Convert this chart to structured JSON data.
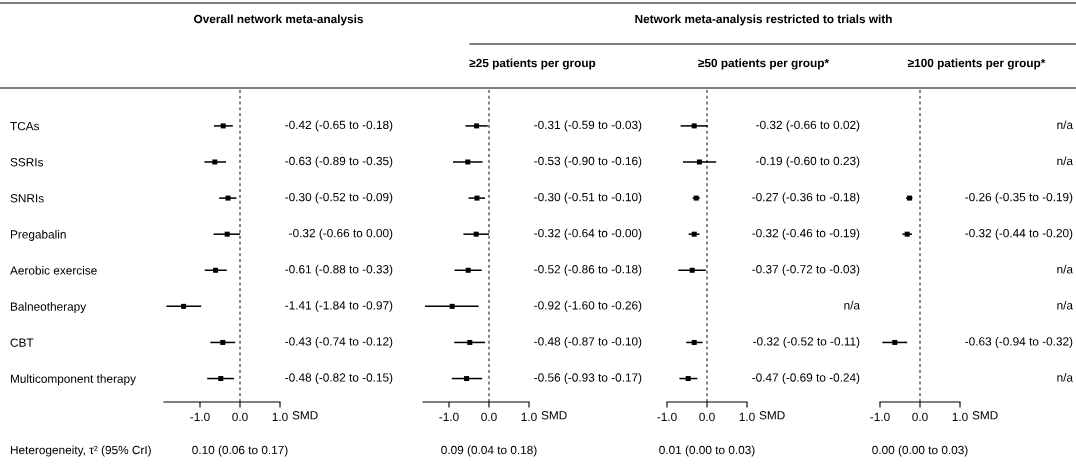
{
  "chart_data": [
    {
      "type": "scatter",
      "orientation": "horizontal",
      "title": "Overall network meta-analysis",
      "xlabel": "SMD",
      "color": "#000000",
      "marker": "square",
      "legend": false,
      "grid": false,
      "categories": [
        "TCAs",
        "SSRIs",
        "SNRIs",
        "Pregabalin",
        "Aerobic exercise",
        "Balneotherapy",
        "CBT",
        "Multicomponent therapy"
      ],
      "values": [
        -0.42,
        -0.63,
        -0.3,
        -0.32,
        -0.61,
        -1.41,
        -0.43,
        -0.48
      ],
      "errors": [
        [
          -0.65,
          -0.18
        ],
        [
          -0.89,
          -0.35
        ],
        [
          -0.52,
          -0.09
        ],
        [
          -0.66,
          0.0
        ],
        [
          -0.88,
          -0.33
        ],
        [
          -1.84,
          -0.97
        ],
        [
          -0.74,
          -0.12
        ],
        [
          -0.82,
          -0.15
        ]
      ],
      "value_labels": [
        "-0.42 (-0.65 to -0.18)",
        "-0.63 (-0.89 to -0.35)",
        "-0.30 (-0.52 to -0.09)",
        "-0.32 (-0.66 to 0.00)",
        "-0.61 (-0.88 to -0.33)",
        "-1.41 (-1.84 to -0.97)",
        "-0.43 (-0.74 to -0.12)",
        "-0.48 (-0.82 to -0.15)"
      ],
      "xlim": [
        -1.9,
        1.0
      ],
      "xticks": [
        {
          "value": -1,
          "label": "-1.0"
        },
        {
          "value": 0,
          "label": "0.0"
        },
        {
          "value": 1,
          "label": "1.0"
        }
      ],
      "ref_lines": [
        {
          "axis": "x",
          "value": 0,
          "line_style": "dashed"
        }
      ],
      "annotations": [
        "Heterogeneity, τ² (95% CrI)",
        "0.10 (0.06 to 0.17)"
      ]
    },
    {
      "type": "scatter",
      "orientation": "horizontal",
      "subtitle": "≥25 patients per group",
      "xlabel": "SMD",
      "color": "#000000",
      "marker": "square",
      "legend": false,
      "grid": false,
      "categories": [
        null,
        null,
        null,
        null,
        null,
        null,
        null,
        null
      ],
      "values": [
        -0.31,
        -0.53,
        -0.3,
        -0.32,
        -0.52,
        -0.92,
        -0.48,
        -0.56
      ],
      "errors": [
        [
          -0.59,
          -0.03
        ],
        [
          -0.9,
          -0.16
        ],
        [
          -0.51,
          -0.1
        ],
        [
          -0.64,
          -0.0
        ],
        [
          -0.86,
          -0.18
        ],
        [
          -1.6,
          -0.26
        ],
        [
          -0.87,
          -0.1
        ],
        [
          -0.93,
          -0.17
        ]
      ],
      "value_labels": [
        "-0.31 (-0.59 to -0.03)",
        "-0.53 (-0.90 to -0.16)",
        "-0.30 (-0.51 to -0.10)",
        "-0.32 (-0.64 to -0.00)",
        "-0.52 (-0.86 to -0.18)",
        "-0.92 (-1.60 to -0.26)",
        "-0.48 (-0.87 to -0.10)",
        "-0.56 (-0.93 to -0.17)"
      ],
      "xlim": [
        -1.65,
        1.0
      ],
      "xticks": [
        {
          "value": -1,
          "label": "-1.0"
        },
        {
          "value": 0,
          "label": "0.0"
        },
        {
          "value": 1,
          "label": "1.0"
        }
      ],
      "ref_lines": [
        {
          "axis": "x",
          "value": 0,
          "line_style": "dashed"
        }
      ],
      "annotations": [
        "0.09 (0.04 to 0.18)"
      ]
    },
    {
      "type": "scatter",
      "orientation": "horizontal",
      "title": "Network meta-analysis restricted to trials with",
      "subtitle": "≥50 patients per group*",
      "xlabel": "SMD",
      "color": "#000000",
      "marker": "square",
      "legend": false,
      "grid": false,
      "categories": [
        null,
        null,
        null,
        null,
        null,
        null,
        null,
        null
      ],
      "values": [
        -0.32,
        -0.19,
        -0.27,
        -0.32,
        -0.37,
        null,
        -0.32,
        -0.47
      ],
      "errors": [
        [
          -0.66,
          0.02
        ],
        [
          -0.6,
          0.23
        ],
        [
          -0.36,
          -0.18
        ],
        [
          -0.46,
          -0.19
        ],
        [
          -0.72,
          -0.03
        ],
        null,
        [
          -0.52,
          -0.11
        ],
        [
          -0.69,
          -0.24
        ]
      ],
      "value_labels": [
        "-0.32 (-0.66 to 0.02)",
        "-0.19 (-0.60 to 0.23)",
        "-0.27 (-0.36 to -0.18)",
        "-0.32 (-0.46 to -0.19)",
        "-0.37 (-0.72 to -0.03)",
        "n/a",
        "-0.32 (-0.52 to -0.11)",
        "-0.47 (-0.69 to -0.24)"
      ],
      "xlim": [
        -1.0,
        1.0
      ],
      "xticks": [
        {
          "value": -1,
          "label": "-1.0"
        },
        {
          "value": 0,
          "label": "0.0"
        },
        {
          "value": 1,
          "label": "1.0"
        }
      ],
      "ref_lines": [
        {
          "axis": "x",
          "value": 0,
          "line_style": "dashed"
        }
      ],
      "annotations": [
        "0.01 (0.00 to 0.03)"
      ]
    },
    {
      "type": "scatter",
      "orientation": "horizontal",
      "subtitle": "≥100 patients per group*",
      "xlabel": "SMD",
      "color": "#000000",
      "marker": "square",
      "legend": false,
      "grid": false,
      "categories": [
        null,
        null,
        null,
        null,
        null,
        null,
        null,
        null
      ],
      "values": [
        null,
        null,
        -0.26,
        -0.32,
        null,
        null,
        -0.63,
        null
      ],
      "errors": [
        null,
        null,
        [
          -0.35,
          -0.19
        ],
        [
          -0.44,
          -0.2
        ],
        null,
        null,
        [
          -0.94,
          -0.32
        ],
        null
      ],
      "value_labels": [
        "n/a",
        "n/a",
        "-0.26 (-0.35 to -0.19)",
        "-0.32 (-0.44 to -0.20)",
        "n/a",
        "n/a",
        "-0.63 (-0.94 to -0.32)",
        "n/a"
      ],
      "xlim": [
        -1.0,
        1.0
      ],
      "xticks": [
        {
          "value": -1,
          "label": "-1.0"
        },
        {
          "value": 0,
          "label": "0.0"
        },
        {
          "value": 1,
          "label": "1.0"
        }
      ],
      "ref_lines": [
        {
          "axis": "x",
          "value": 0,
          "line_style": "dashed"
        }
      ],
      "annotations": [
        "0.00 (0.00 to 0.03)"
      ]
    }
  ]
}
